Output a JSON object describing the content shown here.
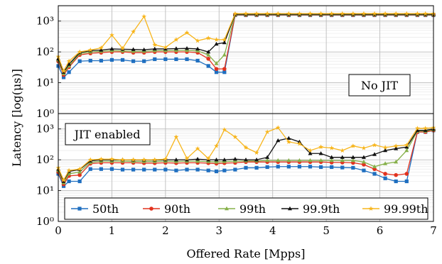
{
  "chart_data": {
    "type": "line",
    "xlabel": "Offered Rate [Mpps]",
    "ylabel": "Latency [log(μs)]",
    "xlim": [
      0,
      7
    ],
    "x_ticks": [
      "0",
      "1",
      "2",
      "3",
      "4",
      "5",
      "6",
      "7"
    ],
    "y_scale": "log",
    "y_ticks": [
      "10⁰",
      "10¹",
      "10²",
      "10³"
    ],
    "grid": true,
    "legend": {
      "position": "bottom-inside-lower-panel",
      "entries": [
        "50th",
        "90th",
        "99th",
        "99.9th",
        "99.99th"
      ]
    },
    "colors": {
      "50th": "#1f6fc0",
      "90th": "#e2321e",
      "99th": "#86b04a",
      "99.9th": "#111111",
      "99.99th": "#f7b51c"
    },
    "x": [
      0,
      0.1,
      0.2,
      0.4,
      0.6,
      0.8,
      1.0,
      1.2,
      1.4,
      1.6,
      1.8,
      2.0,
      2.2,
      2.4,
      2.6,
      2.8,
      2.95,
      3.1,
      3.3,
      3.5,
      3.7,
      3.9,
      4.1,
      4.3,
      4.5,
      4.7,
      4.9,
      5.1,
      5.3,
      5.5,
      5.7,
      5.9,
      6.1,
      6.3,
      6.5,
      6.7,
      6.85,
      7.0
    ],
    "panels": [
      {
        "label": "No JIT",
        "series": [
          {
            "name": "50th",
            "values": [
              35,
              15,
              22,
              50,
              52,
              52,
              55,
              55,
              50,
              50,
              58,
              58,
              58,
              58,
              52,
              35,
              22,
              22,
              1550,
              1550,
              1550,
              1550,
              1550,
              1550,
              1550,
              1550,
              1550,
              1550,
              1550,
              1550,
              1550,
              1550,
              1550,
              1550,
              1550,
              1550,
              1550,
              1550
            ]
          },
          {
            "name": "90th",
            "values": [
              50,
              18,
              32,
              80,
              90,
              95,
              100,
              100,
              95,
              95,
              100,
              100,
              100,
              100,
              95,
              60,
              28,
              28,
              1580,
              1580,
              1580,
              1580,
              1580,
              1580,
              1580,
              1580,
              1580,
              1580,
              1580,
              1580,
              1580,
              1580,
              1580,
              1580,
              1580,
              1580,
              1580,
              1580
            ]
          },
          {
            "name": "99th",
            "values": [
              55,
              20,
              35,
              88,
              100,
              105,
              110,
              108,
              105,
              105,
              110,
              110,
              112,
              112,
              108,
              80,
              42,
              80,
              1620,
              1620,
              1620,
              1620,
              1620,
              1620,
              1620,
              1620,
              1620,
              1620,
              1620,
              1620,
              1620,
              1620,
              1620,
              1620,
              1620,
              1620,
              1620,
              1620
            ]
          },
          {
            "name": "99.9th",
            "values": [
              60,
              22,
              40,
              95,
              110,
              115,
              125,
              122,
              120,
              118,
              125,
              125,
              128,
              130,
              125,
              100,
              180,
              200,
              1680,
              1680,
              1680,
              1680,
              1680,
              1680,
              1680,
              1680,
              1680,
              1680,
              1680,
              1680,
              1680,
              1680,
              1680,
              1680,
              1680,
              1680,
              1680,
              1680
            ]
          },
          {
            "name": "99.99th",
            "values": [
              70,
              24,
              50,
              100,
              115,
              135,
              350,
              130,
              450,
              1400,
              170,
              140,
              250,
              420,
              230,
              280,
              250,
              250,
              1750,
              1750,
              1750,
              1750,
              1750,
              1750,
              1750,
              1750,
              1750,
              1750,
              1750,
              1750,
              1750,
              1750,
              1750,
              1750,
              1750,
              1750,
              1750,
              1750
            ]
          }
        ]
      },
      {
        "label": "JIT enabled",
        "series": [
          {
            "name": "50th",
            "values": [
              35,
              14,
              20,
              20,
              50,
              50,
              50,
              48,
              48,
              48,
              48,
              48,
              45,
              48,
              48,
              45,
              42,
              45,
              48,
              55,
              55,
              58,
              60,
              60,
              60,
              60,
              58,
              58,
              56,
              55,
              45,
              35,
              25,
              20,
              20,
              800,
              800,
              900
            ]
          },
          {
            "name": "90th",
            "values": [
              40,
              16,
              30,
              32,
              75,
              80,
              80,
              80,
              80,
              78,
              78,
              80,
              78,
              80,
              80,
              78,
              75,
              78,
              80,
              85,
              85,
              85,
              85,
              85,
              85,
              85,
              85,
              82,
              82,
              80,
              70,
              50,
              35,
              32,
              35,
              800,
              800,
              900
            ]
          },
          {
            "name": "99th",
            "values": [
              45,
              18,
              35,
              40,
              82,
              90,
              90,
              90,
              88,
              88,
              88,
              90,
              88,
              90,
              90,
              88,
              85,
              88,
              90,
              92,
              92,
              95,
              95,
              95,
              95,
              95,
              95,
              95,
              95,
              95,
              85,
              60,
              75,
              85,
              200,
              850,
              850,
              950
            ]
          },
          {
            "name": "99.9th",
            "values": [
              50,
              20,
              42,
              48,
              92,
              100,
              100,
              100,
              98,
              98,
              98,
              100,
              100,
              100,
              105,
              100,
              100,
              100,
              105,
              100,
              100,
              120,
              420,
              500,
              380,
              160,
              160,
              120,
              120,
              120,
              120,
              150,
              200,
              230,
              260,
              900,
              900,
              1000
            ]
          },
          {
            "name": "99.99th",
            "values": [
              55,
              22,
              45,
              50,
              100,
              105,
              105,
              100,
              100,
              100,
              100,
              105,
              550,
              110,
              230,
              110,
              280,
              950,
              550,
              250,
              170,
              800,
              1100,
              380,
              330,
              200,
              260,
              240,
              200,
              280,
              240,
              300,
              250,
              280,
              300,
              1050,
              1050,
              1100
            ]
          }
        ]
      }
    ]
  }
}
